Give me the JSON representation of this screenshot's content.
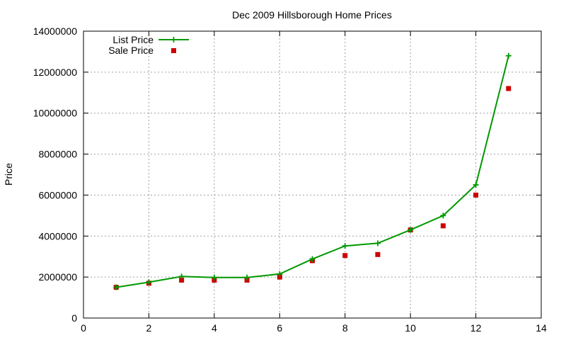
{
  "chart_data": {
    "type": "line",
    "title": "Dec 2009 Hillsborough Home Prices",
    "xlabel": "",
    "ylabel": "Price",
    "xlim": [
      0,
      14
    ],
    "ylim": [
      0,
      14000000
    ],
    "xticks": [
      0,
      2,
      4,
      6,
      8,
      10,
      12,
      14
    ],
    "yticks": [
      0,
      2000000,
      4000000,
      6000000,
      8000000,
      10000000,
      12000000,
      14000000
    ],
    "grid": true,
    "legend_position": "top-left",
    "series": [
      {
        "name": "List Price",
        "style": "line+cross",
        "color": "#009900",
        "x": [
          1,
          2,
          3,
          4,
          5,
          6,
          7,
          8,
          9,
          10,
          11,
          12,
          13
        ],
        "values": [
          1500000,
          1750000,
          2030000,
          1980000,
          1980000,
          2150000,
          2880000,
          3520000,
          3650000,
          4300000,
          5000000,
          6500000,
          12800000
        ]
      },
      {
        "name": "Sale Price",
        "style": "square",
        "color": "#cc0000",
        "x": [
          1,
          2,
          3,
          4,
          5,
          6,
          7,
          8,
          9,
          10,
          11,
          12,
          13
        ],
        "values": [
          1500000,
          1700000,
          1850000,
          1850000,
          1850000,
          2000000,
          2800000,
          3050000,
          3100000,
          4300000,
          4500000,
          6000000,
          11200000
        ]
      }
    ]
  }
}
